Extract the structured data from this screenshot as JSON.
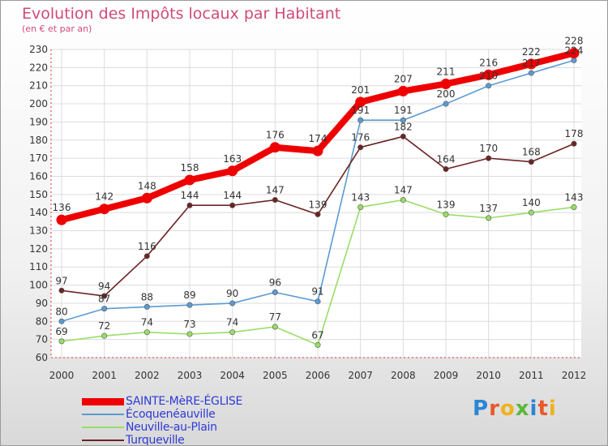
{
  "header": {
    "title": "Evolution des Impôts locaux par Habitant",
    "subtitle": "(en € et par an)"
  },
  "logo": {
    "text": "Proxiti"
  },
  "chart_data": {
    "type": "line",
    "x": [
      2000,
      2001,
      2002,
      2003,
      2004,
      2005,
      2006,
      2007,
      2008,
      2009,
      2010,
      2011,
      2012
    ],
    "ylim": [
      60,
      230
    ],
    "yticks": [
      60,
      70,
      80,
      90,
      100,
      110,
      120,
      130,
      140,
      150,
      160,
      170,
      180,
      190,
      200,
      210,
      220,
      230
    ],
    "grid": true,
    "legend_position": "bottom-left",
    "series": [
      {
        "name": "SAINTE-MèRE-ÉGLISE",
        "color": "#ee0000",
        "values": [
          136,
          142,
          148,
          158,
          163,
          176,
          174,
          201,
          207,
          211,
          216,
          222,
          228
        ]
      },
      {
        "name": "Écoquenéauville",
        "color": "#5b9bd1",
        "values": [
          80,
          87,
          88,
          89,
          90,
          96,
          91,
          191,
          191,
          200,
          210,
          217,
          224
        ]
      },
      {
        "name": "Neuville-au-Plain",
        "color": "#99dd66",
        "values": [
          69,
          72,
          74,
          73,
          74,
          77,
          67,
          143,
          147,
          139,
          137,
          140,
          143
        ]
      },
      {
        "name": "Turqueville",
        "color": "#6b2424",
        "values": [
          97,
          94,
          116,
          144,
          144,
          147,
          139,
          176,
          182,
          164,
          170,
          168,
          178
        ]
      }
    ]
  }
}
